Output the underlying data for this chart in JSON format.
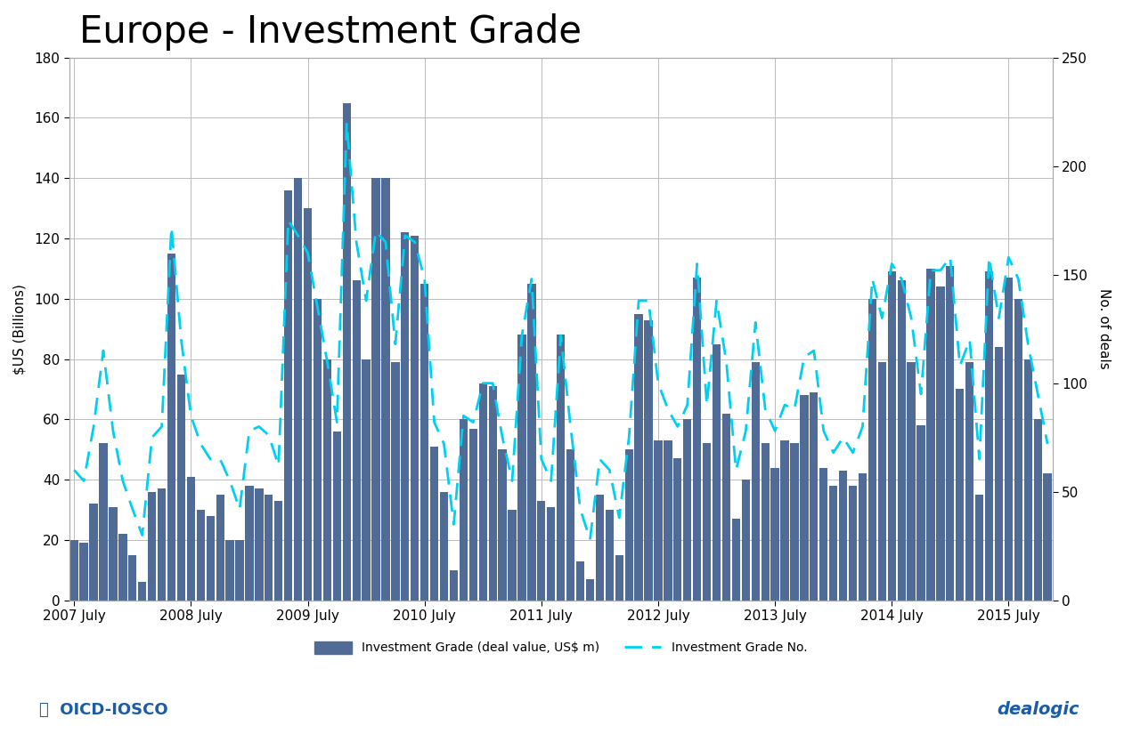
{
  "title": "Europe - Investment Grade",
  "ylabel_left": "$US (Billions)",
  "ylabel_right": "No. of deals",
  "ylim_left": [
    0,
    180
  ],
  "ylim_right": [
    0,
    250
  ],
  "yticks_left": [
    0,
    20,
    40,
    60,
    80,
    100,
    120,
    140,
    160,
    180
  ],
  "yticks_right": [
    0,
    50,
    100,
    150,
    200,
    250
  ],
  "bar_color": "#4f6b96",
  "line_color": "#00d0f0",
  "background_color": "#ffffff",
  "grid_color": "#bbbbbb",
  "title_fontsize": 30,
  "axis_fontsize": 11,
  "tick_fontsize": 11,
  "bar_values": [
    20,
    19,
    32,
    52,
    31,
    22,
    15,
    6,
    36,
    37,
    115,
    75,
    41,
    30,
    28,
    35,
    20,
    20,
    38,
    37,
    35,
    33,
    136,
    140,
    130,
    100,
    80,
    56,
    165,
    106,
    80,
    140,
    140,
    79,
    122,
    121,
    105,
    51,
    36,
    10,
    60,
    57,
    72,
    71,
    50,
    30,
    88,
    105,
    33,
    31,
    88,
    50,
    13,
    7,
    35,
    30,
    15,
    50,
    95,
    93,
    53,
    53,
    47,
    60,
    107,
    52,
    85,
    62,
    27,
    40,
    79,
    52,
    44,
    53,
    52,
    68,
    69,
    44,
    38,
    43,
    38,
    42,
    100,
    79,
    109,
    106,
    79,
    58,
    110,
    104,
    111,
    70,
    79,
    35,
    109,
    84,
    107,
    100,
    80,
    60,
    42
  ],
  "line_values": [
    60,
    55,
    80,
    115,
    78,
    55,
    42,
    30,
    75,
    80,
    172,
    120,
    85,
    72,
    65,
    65,
    55,
    42,
    78,
    80,
    76,
    62,
    175,
    168,
    160,
    135,
    110,
    82,
    220,
    165,
    138,
    170,
    165,
    118,
    168,
    165,
    148,
    82,
    72,
    35,
    85,
    82,
    100,
    100,
    75,
    55,
    122,
    148,
    65,
    55,
    122,
    80,
    42,
    28,
    65,
    60,
    38,
    75,
    138,
    138,
    100,
    88,
    80,
    90,
    155,
    90,
    138,
    110,
    60,
    78,
    128,
    88,
    78,
    90,
    88,
    112,
    115,
    78,
    68,
    75,
    68,
    80,
    148,
    130,
    155,
    148,
    130,
    95,
    152,
    152,
    158,
    108,
    120,
    65,
    158,
    130,
    158,
    148,
    118,
    95,
    72
  ],
  "xtick_labels": [
    "2007 July",
    "2008 July",
    "2009 July",
    "2010 July",
    "2011 July",
    "2012 July",
    "2013 July",
    "2014 July",
    "2015 July"
  ]
}
